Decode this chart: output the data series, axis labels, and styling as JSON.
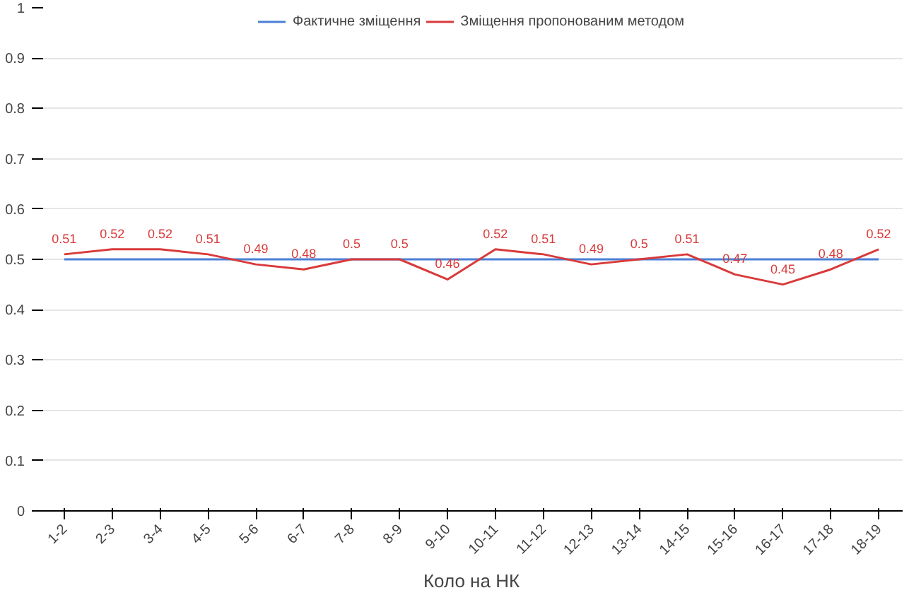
{
  "chart_data": {
    "type": "line",
    "xlabel": "Коло на НК",
    "categories": [
      "1-2",
      "2-3",
      "3-4",
      "4-5",
      "5-6",
      "6-7",
      "7-8",
      "8-9",
      "9-10",
      "10-11",
      "11-12",
      "12-13",
      "13-14",
      "14-15",
      "15-16",
      "16-17",
      "17-18",
      "18-19"
    ],
    "series": [
      {
        "name": "Фактичне зміщення",
        "color": "#4a7fd6",
        "values": [
          0.5,
          0.5,
          0.5,
          0.5,
          0.5,
          0.5,
          0.5,
          0.5,
          0.5,
          0.5,
          0.5,
          0.5,
          0.5,
          0.5,
          0.5,
          0.5,
          0.5,
          0.5
        ]
      },
      {
        "name": "Зміщення пропонованим методом",
        "color": "#d93a3a",
        "values": [
          0.51,
          0.52,
          0.52,
          0.51,
          0.49,
          0.48,
          0.5,
          0.5,
          0.46,
          0.52,
          0.51,
          0.49,
          0.5,
          0.51,
          0.47,
          0.45,
          0.48,
          0.52
        ],
        "value_labels": [
          "0.51",
          "0.52",
          "0.52",
          "0.51",
          "0.49",
          "0.48",
          "0.5",
          "0.5",
          "0.46",
          "0.52",
          "0.51",
          "0.49",
          "0.5",
          "0.51",
          "0.47",
          "0.45",
          "0.48",
          "0.52"
        ]
      }
    ],
    "ylim": [
      0,
      1
    ],
    "yticks": [
      0,
      0.1,
      0.2,
      0.3,
      0.4,
      0.5,
      0.6,
      0.7,
      0.8,
      0.9,
      1
    ],
    "grid": "y",
    "legend": "top"
  }
}
